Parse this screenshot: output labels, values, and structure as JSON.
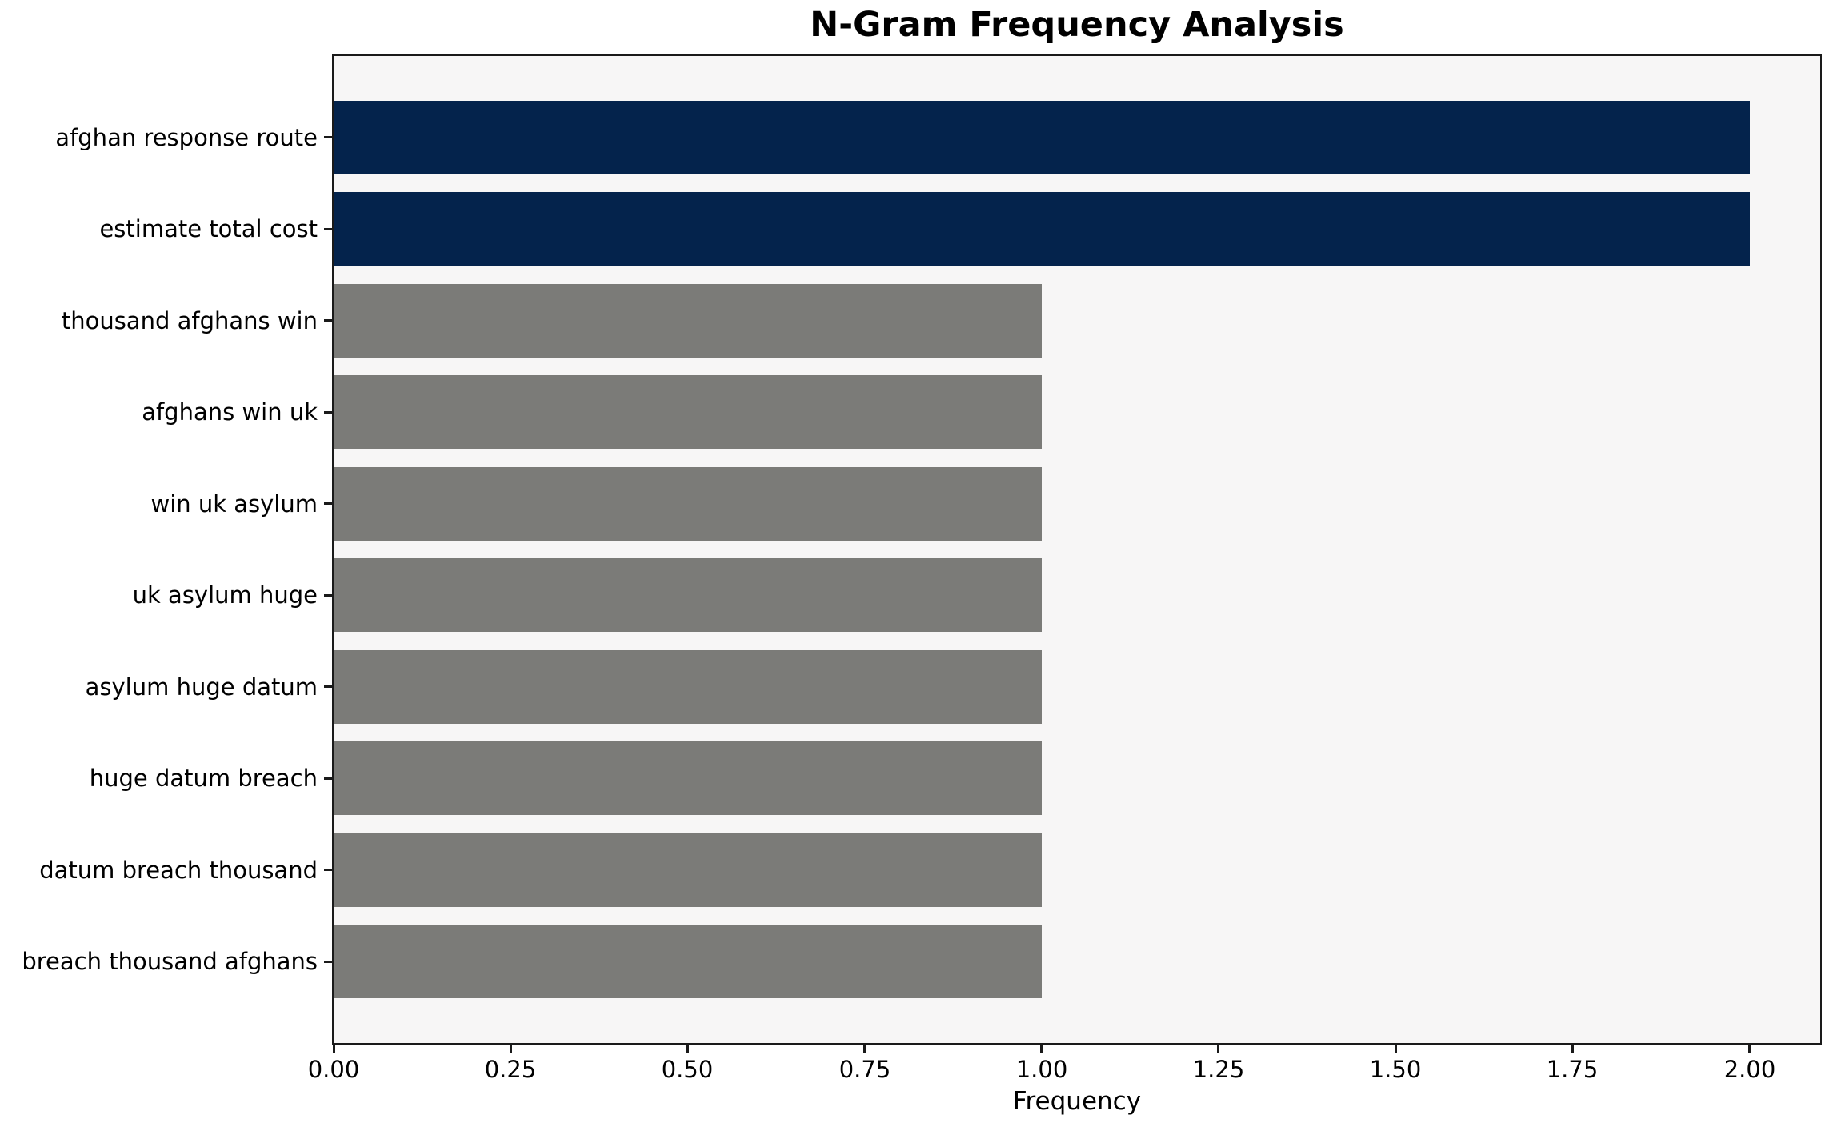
{
  "chart_data": {
    "type": "bar",
    "orientation": "horizontal",
    "title": "N-Gram Frequency Analysis",
    "xlabel": "Frequency",
    "ylabel": "",
    "categories": [
      "afghan response route",
      "estimate total cost",
      "thousand afghans win",
      "afghans win uk",
      "win uk asylum",
      "uk asylum huge",
      "asylum huge datum",
      "huge datum breach",
      "datum breach thousand",
      "breach thousand afghans"
    ],
    "values": [
      2,
      2,
      1,
      1,
      1,
      1,
      1,
      1,
      1,
      1
    ],
    "bar_colors": [
      "#04234c",
      "#04234c",
      "#7b7b78",
      "#7b7b78",
      "#7b7b78",
      "#7b7b78",
      "#7b7b78",
      "#7b7b78",
      "#7b7b78",
      "#7b7b78"
    ],
    "xlim": [
      0,
      2.1
    ],
    "xticks": [
      {
        "value": 0.0,
        "label": "0.00"
      },
      {
        "value": 0.25,
        "label": "0.25"
      },
      {
        "value": 0.5,
        "label": "0.50"
      },
      {
        "value": 0.75,
        "label": "0.75"
      },
      {
        "value": 1.0,
        "label": "1.00"
      },
      {
        "value": 1.25,
        "label": "1.25"
      },
      {
        "value": 1.5,
        "label": "1.50"
      },
      {
        "value": 1.75,
        "label": "1.75"
      },
      {
        "value": 2.0,
        "label": "2.00"
      }
    ],
    "grid": false,
    "legend": null,
    "colors": {
      "highlight_bar": "#04234c",
      "regular_bar": "#7b7b78",
      "plot_background": "#f7f6f6",
      "figure_background": "#ffffff",
      "spine": "#1a1a1a",
      "text": "#000000"
    }
  }
}
